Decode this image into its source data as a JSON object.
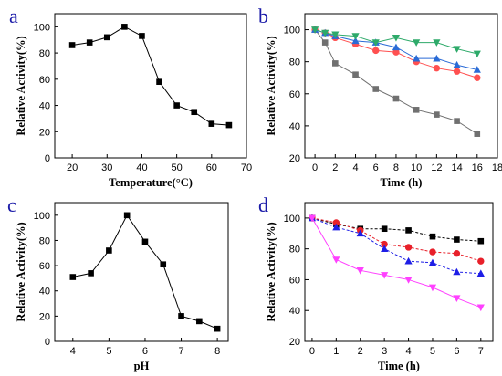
{
  "chart_data": [
    {
      "panel": "a",
      "type": "line",
      "xlabel": "Temperature(°C)",
      "ylabel": "Relative Activity(%)",
      "xlim": [
        15,
        70
      ],
      "ylim": [
        0,
        110
      ],
      "xticks": [
        20,
        30,
        40,
        50,
        60,
        70
      ],
      "yticks": [
        0,
        20,
        40,
        60,
        80,
        100
      ],
      "x": [
        20,
        25,
        30,
        35,
        40,
        45,
        50,
        55,
        60,
        65
      ],
      "series": [
        {
          "values": [
            86,
            88,
            92,
            100,
            93,
            58,
            40,
            35,
            26,
            25
          ],
          "color": "#000000",
          "marker": "square"
        }
      ]
    },
    {
      "panel": "b",
      "type": "line",
      "xlabel": "Time (h)",
      "ylabel": "Relative Activity(%)",
      "xlim": [
        -1,
        18
      ],
      "ylim": [
        20,
        110
      ],
      "xticks": [
        0,
        2,
        4,
        6,
        8,
        10,
        12,
        14,
        16,
        18
      ],
      "yticks": [
        20,
        40,
        60,
        80,
        100
      ],
      "x": [
        0,
        1,
        2,
        4,
        6,
        8,
        10,
        12,
        14,
        16
      ],
      "series": [
        {
          "values": [
            100,
            92,
            79,
            72,
            63,
            57,
            50,
            47,
            43,
            35
          ],
          "color": "#707070",
          "marker": "square"
        },
        {
          "values": [
            100,
            98,
            95,
            91,
            87,
            86,
            80,
            76,
            74,
            70
          ],
          "color": "#ff5050",
          "marker": "circle"
        },
        {
          "values": [
            100,
            98,
            96,
            93,
            92,
            89,
            82,
            82,
            78,
            75
          ],
          "color": "#2a6bd6",
          "marker": "triangle-up"
        },
        {
          "values": [
            100,
            98,
            97,
            96,
            92,
            95,
            92,
            92,
            88,
            85
          ],
          "color": "#2eaa6a",
          "marker": "triangle-down"
        }
      ]
    },
    {
      "panel": "c",
      "type": "line",
      "xlabel": "pH",
      "ylabel": "Relative Activity(%)",
      "xlim": [
        3.5,
        8.3
      ],
      "ylim": [
        0,
        110
      ],
      "xticks": [
        4,
        5,
        6,
        7,
        8
      ],
      "yticks": [
        0,
        20,
        40,
        60,
        80,
        100
      ],
      "x": [
        4,
        4.5,
        5,
        5.5,
        6,
        6.5,
        7,
        7.5,
        8
      ],
      "series": [
        {
          "values": [
            51,
            54,
            72,
            100,
            79,
            61,
            20,
            16,
            10
          ],
          "color": "#000000",
          "marker": "square"
        }
      ]
    },
    {
      "panel": "d",
      "type": "line",
      "xlabel": "Time (h)",
      "ylabel": "Relative Activity(%)",
      "xlim": [
        -0.3,
        7.5
      ],
      "ylim": [
        20,
        110
      ],
      "xticks": [
        0,
        1,
        2,
        3,
        4,
        5,
        6,
        7
      ],
      "yticks": [
        20,
        40,
        60,
        80,
        100
      ],
      "x": [
        0,
        1,
        2,
        3,
        4,
        5,
        6,
        7
      ],
      "series": [
        {
          "values": [
            100,
            96,
            93,
            93,
            92,
            88,
            86,
            85
          ],
          "color": "#000000",
          "marker": "square",
          "dashed": true
        },
        {
          "values": [
            100,
            97,
            92,
            83,
            81,
            78,
            77,
            72
          ],
          "color": "#e8202a",
          "marker": "circle",
          "dashed": true
        },
        {
          "values": [
            100,
            94,
            90,
            80,
            72,
            71,
            65,
            64
          ],
          "color": "#1e1ee6",
          "marker": "triangle-up",
          "dashed": true
        },
        {
          "values": [
            100,
            73,
            66,
            63,
            60,
            55,
            48,
            42
          ],
          "color": "#ff40ff",
          "marker": "triangle-down",
          "dashed": false
        }
      ]
    }
  ]
}
